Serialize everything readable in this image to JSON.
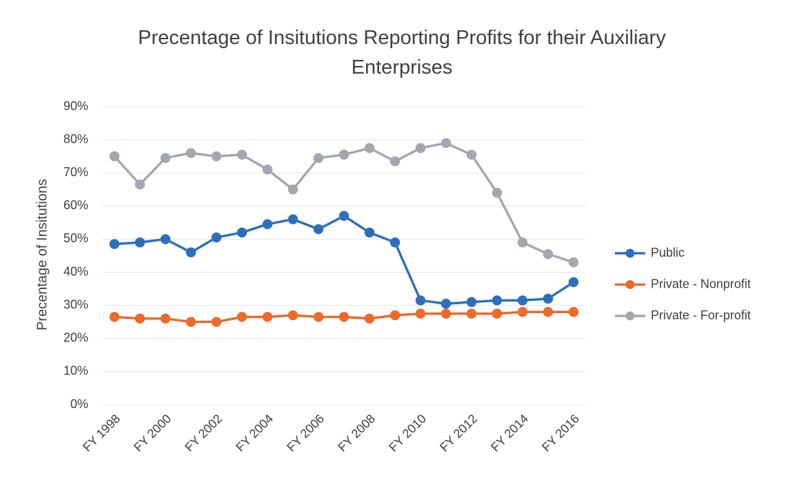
{
  "chart_data": {
    "type": "line",
    "title": "Precentage of Insitutions Reporting Profits for their Auxiliary Enterprises",
    "y_label": "Precentage of Insitutions",
    "categories": [
      "FY 1998",
      null,
      "FY 2000",
      null,
      "FY 2002",
      null,
      "FY 2004",
      null,
      "FY 2006",
      null,
      "FY 2008",
      null,
      "FY 2010",
      null,
      "FY 2012",
      null,
      "FY 2014",
      null,
      "FY 2016"
    ],
    "series": [
      {
        "name": "Public",
        "color": "#2e6fba",
        "values": [
          48.5,
          49,
          50,
          46,
          50.5,
          52,
          54.5,
          56,
          53,
          57,
          52,
          49,
          31.5,
          30.5,
          31,
          31.5,
          31.5,
          32,
          37
        ]
      },
      {
        "name": "Private - Nonprofit",
        "color": "#ec6a2a",
        "values": [
          26.5,
          26,
          26,
          25,
          25,
          26.5,
          26.5,
          27,
          26.5,
          26.5,
          26,
          27,
          27.5,
          27.5,
          27.5,
          27.5,
          28,
          28,
          28
        ]
      },
      {
        "name": "Private - For-profit",
        "color": "#a3a8b0",
        "values": [
          75,
          66.5,
          74.5,
          76,
          75,
          75.5,
          71,
          65,
          74.5,
          75.5,
          77.5,
          73.5,
          77.5,
          79,
          75.5,
          64,
          49,
          45.5,
          43
        ]
      }
    ],
    "ylim": [
      0,
      90
    ],
    "yticks": [
      {
        "value": 0,
        "label": "0%"
      },
      {
        "value": 10,
        "label": "10%"
      },
      {
        "value": 20,
        "label": "20%"
      },
      {
        "value": 30,
        "label": "30%"
      },
      {
        "value": 40,
        "label": "40%"
      },
      {
        "value": 50,
        "label": "50%"
      },
      {
        "value": 60,
        "label": "60%"
      },
      {
        "value": 70,
        "label": "70%"
      },
      {
        "value": 80,
        "label": "80%"
      },
      {
        "value": 90,
        "label": "90%"
      }
    ],
    "grid": true,
    "legend": "right"
  }
}
